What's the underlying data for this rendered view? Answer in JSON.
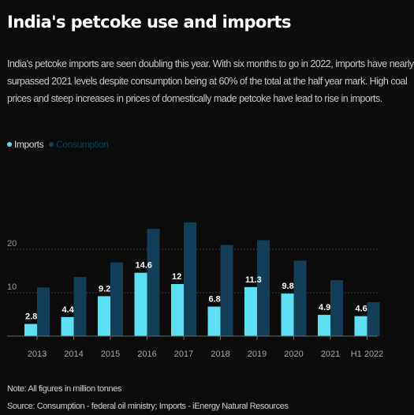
{
  "title": "India's petcoke use and imports",
  "subtitle_lines": [
    "India's petcoke imports are seen doubling this year. With six months to go in 2022, imports have nearly",
    "surpassed 2021 levels despite consumption being at 60% of the total at the half year mark. High coal",
    "prices and steep increases in prices of domestically made petcoke have lead to rise in imports."
  ],
  "note": "Note: All figures in million tonnes",
  "source": "Source: Consumption - federal oil ministry; Imports - iEnergy Natural Resources",
  "colors": {
    "imports": "#5ee0f3",
    "consumption": "#123f57",
    "background": "#0b0b0b",
    "grid": "#3a3a3a"
  },
  "chart_data": {
    "type": "bar",
    "categories": [
      "2013",
      "2014",
      "2015",
      "2016",
      "2017",
      "2018",
      "2019",
      "2020",
      "2021",
      "H1 2022"
    ],
    "series": [
      {
        "name": "Imports",
        "values": [
          2.8,
          4.4,
          9.2,
          14.6,
          12,
          6.8,
          11.3,
          9.8,
          4.9,
          4.6
        ],
        "labels": [
          "2.8",
          "4.4",
          "9.2",
          "14.6",
          "12",
          "6.8",
          "11.3",
          "9.8",
          "4.9",
          "4.6"
        ]
      },
      {
        "name": "Consumption",
        "values": [
          11.2,
          13.6,
          17,
          24.7,
          26.2,
          21,
          22.1,
          17.4,
          12.9,
          7.8
        ]
      }
    ],
    "yticks": [
      10,
      20
    ],
    "ylim": [
      0,
      32
    ],
    "legend": "top-left",
    "grid": true
  }
}
